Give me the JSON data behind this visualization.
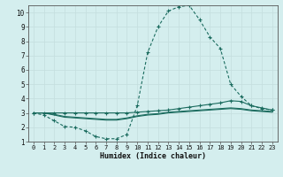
{
  "xlabel": "Humidex (Indice chaleur)",
  "bg_color": "#d4eeee",
  "line_color": "#1a6b5e",
  "grid_color": "#c4dede",
  "xlim": [
    -0.5,
    23.5
  ],
  "ylim": [
    1,
    10.5
  ],
  "xticks": [
    0,
    1,
    2,
    3,
    4,
    5,
    6,
    7,
    8,
    9,
    10,
    11,
    12,
    13,
    14,
    15,
    16,
    17,
    18,
    19,
    20,
    21,
    22,
    23
  ],
  "yticks": [
    1,
    2,
    3,
    4,
    5,
    6,
    7,
    8,
    9,
    10
  ],
  "line1_x": [
    0,
    1,
    2,
    3,
    4,
    5,
    6,
    7,
    8,
    9,
    10,
    11,
    12,
    13,
    14,
    15,
    16,
    17,
    18,
    19,
    20,
    21,
    22,
    23
  ],
  "line1_y": [
    3.0,
    2.85,
    2.45,
    2.05,
    2.0,
    1.75,
    1.35,
    1.2,
    1.2,
    1.5,
    3.5,
    7.2,
    9.0,
    10.1,
    10.4,
    10.5,
    9.5,
    8.3,
    7.5,
    5.0,
    4.15,
    3.5,
    3.3,
    3.2
  ],
  "line2_x": [
    0,
    1,
    2,
    3,
    4,
    5,
    6,
    7,
    8,
    9,
    10,
    11,
    12,
    13,
    14,
    15,
    16,
    17,
    18,
    19,
    20,
    21,
    22,
    23
  ],
  "line2_y": [
    3.0,
    3.0,
    3.0,
    3.0,
    3.0,
    3.0,
    3.0,
    3.0,
    3.0,
    3.0,
    3.05,
    3.1,
    3.15,
    3.2,
    3.3,
    3.4,
    3.5,
    3.6,
    3.7,
    3.85,
    3.8,
    3.5,
    3.35,
    3.2
  ],
  "line3_x": [
    0,
    1,
    2,
    3,
    4,
    5,
    6,
    7,
    8,
    9,
    10,
    11,
    12,
    13,
    14,
    15,
    16,
    17,
    18,
    19,
    20,
    21,
    22,
    23
  ],
  "line3_y": [
    3.0,
    3.0,
    2.85,
    2.7,
    2.65,
    2.6,
    2.55,
    2.5,
    2.5,
    2.6,
    2.75,
    2.85,
    2.9,
    3.0,
    3.05,
    3.1,
    3.15,
    3.2,
    3.25,
    3.3,
    3.25,
    3.15,
    3.1,
    3.05
  ],
  "line4_x": [
    0,
    1,
    2,
    3,
    4,
    5,
    6,
    7,
    8,
    9,
    10,
    11,
    12,
    13,
    14,
    15,
    16,
    17,
    18,
    19,
    20,
    21,
    22,
    23
  ],
  "line4_y": [
    3.0,
    3.0,
    2.9,
    2.75,
    2.7,
    2.65,
    2.6,
    2.55,
    2.55,
    2.65,
    2.8,
    2.9,
    2.95,
    3.05,
    3.1,
    3.15,
    3.2,
    3.25,
    3.3,
    3.35,
    3.3,
    3.2,
    3.15,
    3.1
  ]
}
